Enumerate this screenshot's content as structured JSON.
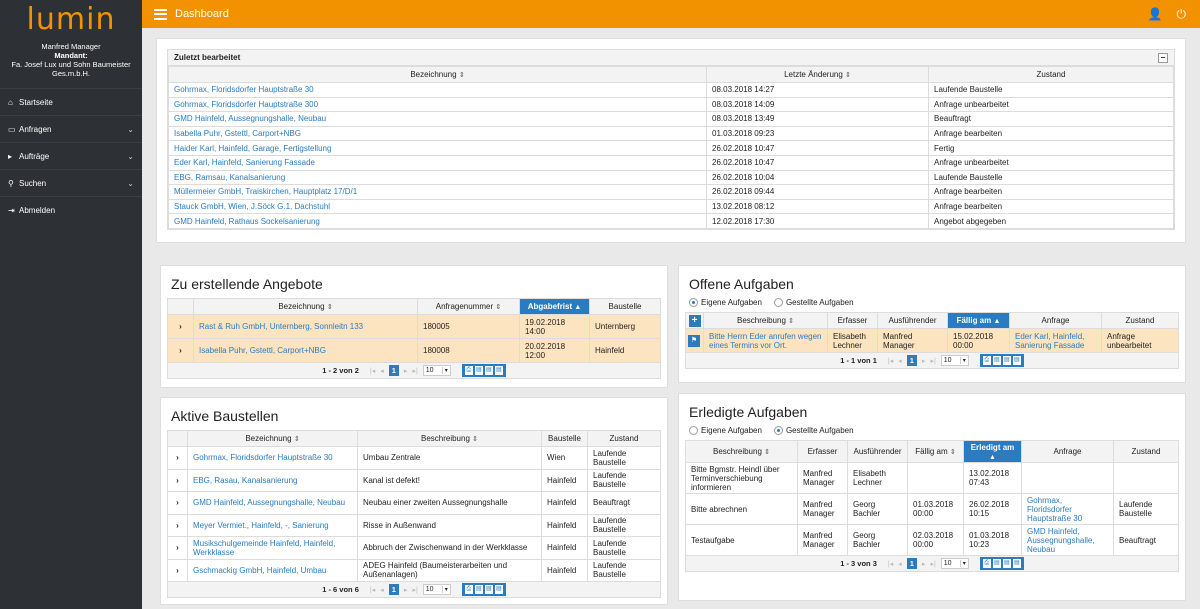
{
  "app": {
    "logo": "lumin",
    "user": "Manfred Manager",
    "mandant_label": "Mandant:",
    "mandant": "Fa. Josef Lux und Sohn Baumeister Ges.m.b.H."
  },
  "nav": [
    {
      "label": "Startseite",
      "icon": "home-icon",
      "chev": ""
    },
    {
      "label": "Anfragen",
      "icon": "inbox-icon",
      "chev": "⌄"
    },
    {
      "label": "Aufträge",
      "icon": "play-icon",
      "chev": "⌄"
    },
    {
      "label": "Suchen",
      "icon": "search-icon",
      "chev": "⌄"
    },
    {
      "label": "Abmelden",
      "icon": "logout-icon",
      "chev": ""
    }
  ],
  "topbar": {
    "title": "Dashboard"
  },
  "recent": {
    "title": "Zuletzt bearbeitet",
    "collapse": "−",
    "headers": [
      "Bezeichnung",
      "Letzte Änderung",
      "Zustand"
    ],
    "rows": [
      [
        "Gohrmax, Floridsdorfer Hauptstraße 30",
        "08.03.2018 14:27",
        "Laufende Baustelle"
      ],
      [
        "Gohrmax, Floridsdorfer Hauptstraße 300",
        "08.03.2018 14:09",
        "Anfrage unbearbeitet"
      ],
      [
        "GMD Hainfeld, Aussegnungshalle, Neubau",
        "08.03.2018 13:49",
        "Beauftragt"
      ],
      [
        "Isabella Puhr, Gstettl, Carport+NBG",
        "01.03.2018 09:23",
        "Anfrage bearbeiten"
      ],
      [
        "Haider Karl, Hainfeld, Garage, Fertigstellung",
        "26.02.2018 10:47",
        "Fertig"
      ],
      [
        "Eder Karl, Hainfeld, Sanierung Fassade",
        "26.02.2018 10:47",
        "Anfrage unbearbeitet"
      ],
      [
        "EBG, Ramsau, Kanalsanierung",
        "26.02.2018 10:04",
        "Laufende Baustelle"
      ],
      [
        "Müllermeier GmbH, Traiskirchen, Hauptplatz 17/D/1",
        "26.02.2018 09:44",
        "Anfrage bearbeiten"
      ],
      [
        "Stauck GmbH, Wien, J.Söck G.1, Dachstuhl",
        "13.02.2018 08:12",
        "Anfrage bearbeiten"
      ],
      [
        "GMD Hainfeld, Rathaus Sockelsanierung",
        "12.02.2018 17:30",
        "Angebot abgegeben"
      ]
    ]
  },
  "offers": {
    "title": "Zu erstellende Angebote",
    "headers": [
      "Bezeichnung",
      "Anfragenummer",
      "Abgabefrist",
      "Baustelle"
    ],
    "rows": [
      {
        "name": "Rast & Ruh GmbH, Unternberg, Sonnleitn 133",
        "nr": "180005",
        "date": "19.02.2018 14:00",
        "site": "Unternberg"
      },
      {
        "name": "Isabella Puhr, Gstettl, Carport+NBG",
        "nr": "180008",
        "date": "20.02.2018 12:00",
        "site": "Hainfeld"
      }
    ],
    "count": "1 - 2 von 2",
    "page": "1",
    "size": "10"
  },
  "sites": {
    "title": "Aktive Baustellen",
    "headers": [
      "Bezeichnung",
      "Beschreibung",
      "Baustelle",
      "Zustand"
    ],
    "rows": [
      [
        "Gohrmax, Floridsdorfer Hauptstraße 30",
        "Umbau Zentrale",
        "Wien",
        "Laufende Baustelle"
      ],
      [
        "EBG, Rasau, Kanalsanierung",
        "Kanal ist defekt!",
        "Hainfeld",
        "Laufende Baustelle"
      ],
      [
        "GMD Hainfeld, Aussegnungshalle, Neubau",
        "Neubau einer zweiten Aussegnungshalle",
        "Hainfeld",
        "Beauftragt"
      ],
      [
        "Meyer Vermiet., Hainfeld, -, Sanierung",
        "Risse in Außenwand",
        "Hainfeld",
        "Laufende Baustelle"
      ],
      [
        "Musikschulgemeinde Hainfeld, Hainfeld, Werkklasse",
        "Abbruch der Zwischenwand in der Werkklasse",
        "Hainfeld",
        "Laufende Baustelle"
      ],
      [
        "Gschmackig GmbH, Hainfeld, Umbau",
        "ADEG Hainfeld (Baumeisterarbeiten und Außenanlagen)",
        "Hainfeld",
        "Laufende Baustelle"
      ]
    ],
    "count": "1 - 6 von 6",
    "page": "1",
    "size": "10"
  },
  "open_tasks": {
    "title": "Offene Aufgaben",
    "radio1": "Eigene Aufgaben",
    "radio2": "Gestellte Aufgaben",
    "headers": [
      "Beschreibung",
      "Erfasser",
      "Ausführender",
      "Fällig am",
      "Anfrage",
      "Zustand"
    ],
    "rows": [
      {
        "desc": "Bitte Herrn Eder anrufen wegen eines Termins vor Ort.",
        "by": "Elisabeth Lechner",
        "exec": "Manfred Manager",
        "due": "15.02.2018 00:00",
        "req": "Eder Karl, Hainfeld, Sanierung Fassade",
        "state": "Anfrage unbearbeitet"
      }
    ],
    "count": "1 - 1 von 1",
    "page": "1",
    "size": "10"
  },
  "done_tasks": {
    "title": "Erledigte Aufgaben",
    "radio1": "Eigene Aufgaben",
    "radio2": "Gestellte Aufgaben",
    "headers": [
      "Beschreibung",
      "Erfasser",
      "Ausführender",
      "Fällig am",
      "Erledigt am",
      "Anfrage",
      "Zustand"
    ],
    "rows": [
      [
        "Bitte Bgmstr. Heindl über Terminverschiebung informieren",
        "Manfred Manager",
        "Elisabeth Lechner",
        "",
        "13.02.2018 07:43",
        "",
        ""
      ],
      [
        "Bitte abrechnen",
        "Manfred Manager",
        "Georg Bachler",
        "01.03.2018 00:00",
        "26.02.2018 10:15",
        "Gohrmax, Floridsdorfer Hauptstraße 30",
        "Laufende Baustelle"
      ],
      [
        "Testaufgabe",
        "Manfred Manager",
        "Georg Bachler",
        "02.03.2018 00:00",
        "01.03.2018 10:23",
        "GMD Hainfeld, Aussegnungshalle, Neubau",
        "Beauftragt"
      ]
    ],
    "count": "1 - 3 von 3",
    "page": "1",
    "size": "10"
  }
}
